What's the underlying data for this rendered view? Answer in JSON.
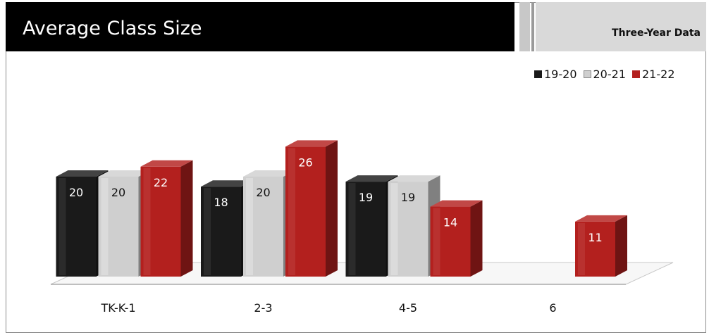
{
  "header": {
    "title": "Average Class Size",
    "subtitle": "Three-Year Data"
  },
  "chart_data": {
    "type": "bar",
    "categories": [
      "TK-K-1",
      "2-3",
      "4-5",
      "6"
    ],
    "series": [
      {
        "name": "19-20",
        "values": [
          20,
          18,
          19,
          null
        ],
        "color": "#1a1a1a"
      },
      {
        "name": "20-21",
        "values": [
          20,
          20,
          19,
          null
        ],
        "color": "#cfcfcf"
      },
      {
        "name": "21-22",
        "values": [
          22,
          26,
          14,
          11
        ],
        "color": "#b3201e"
      }
    ],
    "legend_position": "top-right",
    "data_labels": true,
    "grid": false,
    "ylim": [
      0,
      30
    ]
  }
}
